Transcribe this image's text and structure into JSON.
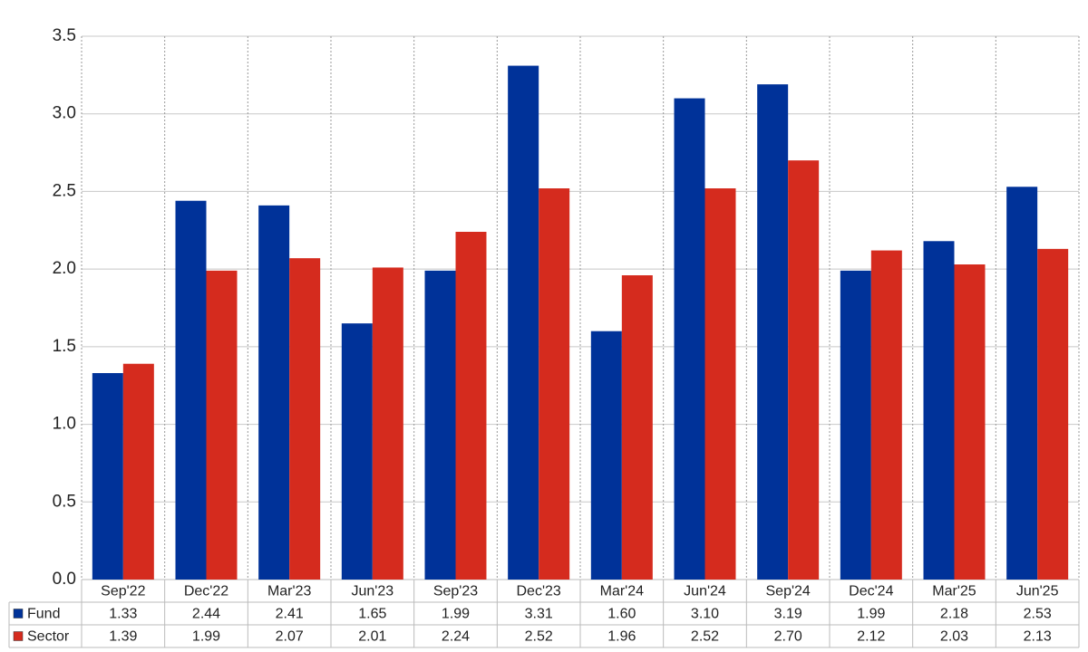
{
  "chart_data": {
    "type": "bar",
    "categories": [
      "Sep'22",
      "Dec'22",
      "Mar'23",
      "Jun'23",
      "Sep'23",
      "Dec'23",
      "Mar'24",
      "Jun'24",
      "Sep'24",
      "Dec'24",
      "Mar'25",
      "Jun'25"
    ],
    "series": [
      {
        "name": "Fund",
        "color": "#003299",
        "values": [
          1.33,
          2.44,
          2.41,
          1.65,
          1.99,
          3.31,
          1.6,
          3.1,
          3.19,
          1.99,
          2.18,
          2.53
        ],
        "value_labels": [
          "1.33",
          "2.44",
          "2.41",
          "1.65",
          "1.99",
          "3.31",
          "1.60",
          "3.10",
          "3.19",
          "1.99",
          "2.18",
          "2.53"
        ]
      },
      {
        "name": "Sector",
        "color": "#d52b1e",
        "values": [
          1.39,
          1.99,
          2.07,
          2.01,
          2.24,
          2.52,
          1.96,
          2.52,
          2.7,
          2.12,
          2.03,
          2.13
        ],
        "value_labels": [
          "1.39",
          "1.99",
          "2.07",
          "2.01",
          "2.24",
          "2.52",
          "1.96",
          "2.52",
          "2.70",
          "2.12",
          "2.03",
          "2.13"
        ]
      }
    ],
    "ylim": [
      0,
      3.5
    ],
    "yticks": [
      {
        "value": 0,
        "label": "0.0"
      },
      0.5,
      {
        "value": 1,
        "label": "1.0"
      },
      1.5,
      {
        "value": 2,
        "label": "2.0"
      },
      2.5,
      {
        "value": 3,
        "label": "3.0"
      },
      3.5
    ],
    "grid": true
  }
}
